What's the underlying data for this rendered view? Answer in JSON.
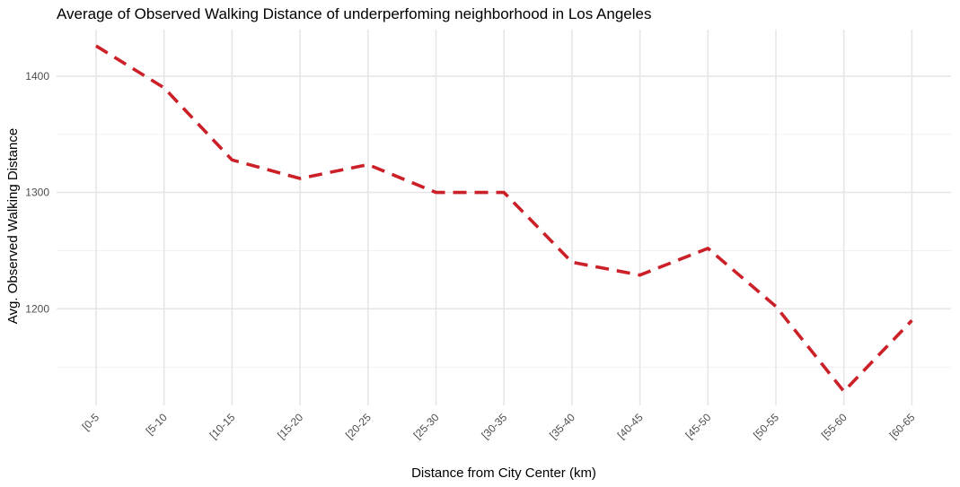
{
  "chart_data": {
    "type": "line",
    "title": "Average of Observed Walking Distance of underperfoming neighborhood in Los Angeles",
    "xlabel": "Distance from City Center (km)",
    "ylabel": "Avg. Observed Walking Distance",
    "categories": [
      "[0-5",
      "[5-10",
      "[10-15",
      "[15-20",
      "[20-25",
      "[25-30",
      "[30-35",
      "[35-40",
      "[40-45",
      "[45-50",
      "[50-55",
      "[55-60",
      "[60-65"
    ],
    "values": [
      1426,
      1390,
      1328,
      1312,
      1324,
      1300,
      1300,
      1240,
      1229,
      1252,
      1202,
      1129,
      1190
    ],
    "yticks": [
      "1200",
      "1300",
      "1400"
    ],
    "ylim": [
      1117,
      1440
    ],
    "line_style": "dashed",
    "line_color": "#cb2027",
    "grid": true,
    "legend": "none"
  }
}
